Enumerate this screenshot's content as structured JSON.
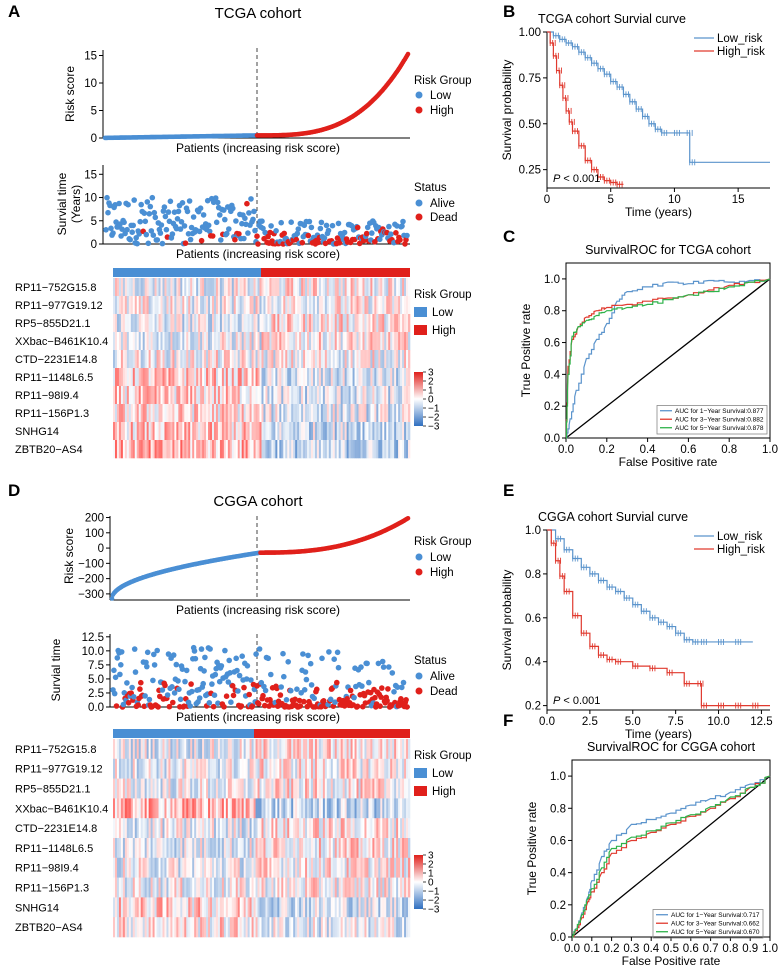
{
  "colors": {
    "low": "#4a8fd4",
    "high": "#e0201b",
    "blue": "#5b94cc",
    "red": "#e03a2f",
    "green": "#2eb34a",
    "axis": "#000000"
  },
  "panel_letters": {
    "A": "A",
    "B": "B",
    "C": "C",
    "D": "D",
    "E": "E",
    "F": "F"
  },
  "tcga": {
    "title": "TCGA cohort",
    "risk_plot": {
      "ylabel": "Risk score",
      "xlabel": "Patients (increasing risk score)",
      "yticks": [
        "0",
        "5",
        "10",
        "15"
      ],
      "ylim": [
        0,
        16
      ],
      "n_low": 150,
      "n_high": 150,
      "legend_title": "Risk Group",
      "legend_low": "Low",
      "legend_high": "High"
    },
    "surv_plot": {
      "ylabel1": "Survial time",
      "ylabel2": "(Years)",
      "xlabel": "Patients (increasing risk score)",
      "yticks": [
        "0",
        "5",
        "10",
        "15"
      ],
      "ylim": [
        0,
        17
      ],
      "legend_title": "Status",
      "legend_alive": "Alive",
      "legend_dead": "Dead"
    },
    "heatmap": {
      "genes": [
        "RP11−752G15.8",
        "RP11−977G19.12",
        "RP5−855D21.1",
        "XXbac−B461K10.4",
        "CTD−2231E14.8",
        "RP11−1148L6.5",
        "RP11−98I9.4",
        "RP11−156P1.3",
        "SNHG14",
        "ZBTB20−AS4"
      ],
      "legend_title": "Risk Group",
      "legend_low": "Low",
      "legend_high": "High",
      "scale_ticks": [
        "3",
        "2",
        "1",
        "0",
        "−1",
        "−2",
        "−3"
      ]
    }
  },
  "cgga": {
    "title": "CGGA cohort",
    "risk_plot": {
      "ylabel": "Risk score",
      "xlabel": "Patients (increasing risk score)",
      "yticks": [
        "200",
        "100",
        "0",
        "−100",
        "−200",
        "−300"
      ],
      "ylim": [
        -340,
        210
      ],
      "n_low": 160,
      "n_high": 160,
      "legend_title": "Risk Group",
      "legend_low": "Low",
      "legend_high": "High"
    },
    "surv_plot": {
      "ylabel": "Survial time",
      "xlabel": "Patients (increasing risk score)",
      "yticks": [
        "12.5",
        "10.0",
        "7.5",
        "5.0",
        "2.5",
        "0.0"
      ],
      "ylim": [
        0,
        13
      ],
      "legend_title": "Status",
      "legend_alive": "Alive",
      "legend_dead": "Dead"
    },
    "heatmap": {
      "genes": [
        "RP11−752G15.8",
        "RP11−977G19.12",
        "RP5−855D21.1",
        "XXbac−B461K10.4",
        "CTD−2231E14.8",
        "RP11−1148L6.5",
        "RP11−98I9.4",
        "RP11−156P1.3",
        "SNHG14",
        "ZBTB20−AS4"
      ],
      "legend_title": "Risk Group",
      "legend_low": "Low",
      "legend_high": "High",
      "scale_ticks": [
        "3",
        "2",
        "1",
        "0",
        "−1",
        "−2",
        "−3"
      ]
    }
  },
  "chart_data": [
    {
      "id": "km_tcga",
      "type": "line",
      "title": "TCGA cohort Survial curve",
      "xlabel": "Time (years)",
      "ylabel": "Survival probability",
      "xlim": [
        0,
        17.5
      ],
      "ylim": [
        0.15,
        1.0
      ],
      "xticks": [
        "0",
        "5",
        "10",
        "15"
      ],
      "yticks": [
        "1.00",
        "0.75",
        "0.50",
        "0.25"
      ],
      "pvalue": "P < 0.001",
      "pvalue_p": "P",
      "pvalue_rest": " < 0.001",
      "series": [
        {
          "name": "Low_risk",
          "x": [
            0,
            0.5,
            1,
            1.5,
            2,
            2.5,
            3,
            3.5,
            4,
            4.5,
            5,
            5.5,
            6,
            6.5,
            7,
            7.5,
            8,
            8.5,
            9,
            10,
            11,
            11.2,
            17.5
          ],
          "y": [
            1.0,
            0.98,
            0.96,
            0.94,
            0.92,
            0.89,
            0.86,
            0.83,
            0.8,
            0.77,
            0.73,
            0.7,
            0.66,
            0.62,
            0.58,
            0.54,
            0.5,
            0.47,
            0.45,
            0.45,
            0.45,
            0.29,
            0.29
          ]
        },
        {
          "name": "High_risk",
          "x": [
            0,
            0.25,
            0.5,
            0.75,
            1,
            1.25,
            1.5,
            1.75,
            2,
            2.5,
            3,
            3.5,
            4,
            4.5,
            5,
            5.5,
            6
          ],
          "y": [
            1.0,
            0.94,
            0.87,
            0.79,
            0.71,
            0.64,
            0.57,
            0.51,
            0.46,
            0.38,
            0.3,
            0.25,
            0.21,
            0.19,
            0.18,
            0.17,
            0.17
          ]
        }
      ]
    },
    {
      "id": "roc_tcga",
      "type": "line",
      "title": "SurvivalROC for TCGA cohort",
      "xlabel": "False Positive rate",
      "ylabel": "True Positive rate",
      "xlim": [
        0,
        1
      ],
      "ylim": [
        0,
        1.1
      ],
      "xticks": [
        "0.0",
        "0.2",
        "0.4",
        "0.6",
        "0.8",
        "1.0"
      ],
      "yticks": [
        "0.0",
        "0.2",
        "0.4",
        "0.6",
        "0.8",
        "1.0"
      ],
      "series": [
        {
          "name": "AUC for 1−Year Survival:0.877",
          "x": [
            0,
            0.02,
            0.05,
            0.1,
            0.15,
            0.2,
            0.25,
            0.3,
            0.4,
            0.5,
            0.6,
            0.7,
            0.8,
            0.9,
            1.0
          ],
          "y": [
            0,
            0.12,
            0.3,
            0.5,
            0.62,
            0.72,
            0.86,
            0.92,
            0.95,
            0.98,
            0.97,
            0.99,
            0.98,
            0.99,
            1.0
          ]
        },
        {
          "name": "AUC for 3−Year Survival:0.882",
          "x": [
            0,
            0.01,
            0.03,
            0.06,
            0.1,
            0.15,
            0.2,
            0.3,
            0.4,
            0.5,
            0.6,
            0.7,
            0.8,
            0.9,
            1.0
          ],
          "y": [
            0,
            0.45,
            0.62,
            0.7,
            0.76,
            0.8,
            0.82,
            0.84,
            0.86,
            0.88,
            0.9,
            0.93,
            0.96,
            0.98,
            1.0
          ]
        },
        {
          "name": "AUC for 5−Year Survival:0.878",
          "x": [
            0,
            0.01,
            0.03,
            0.06,
            0.1,
            0.15,
            0.2,
            0.3,
            0.4,
            0.5,
            0.6,
            0.7,
            0.8,
            0.9,
            1.0
          ],
          "y": [
            0,
            0.4,
            0.64,
            0.7,
            0.74,
            0.77,
            0.8,
            0.82,
            0.84,
            0.87,
            0.9,
            0.92,
            0.95,
            0.98,
            1.0
          ]
        }
      ]
    },
    {
      "id": "km_cgga",
      "type": "line",
      "title": "CGGA cohort Survial curve",
      "xlabel": "Time (years)",
      "ylabel": "Survival probability",
      "xlim": [
        0,
        13
      ],
      "ylim": [
        0.18,
        1.0
      ],
      "xticks": [
        "0.0",
        "2.5",
        "5.0",
        "7.5",
        "10.0",
        "12.5"
      ],
      "yticks": [
        "1.0",
        "0.8",
        "0.6",
        "0.4",
        "0.2"
      ],
      "pvalue": "P < 0.001",
      "pvalue_p": "P",
      "pvalue_rest": " < 0.001",
      "series": [
        {
          "name": "Low_risk",
          "x": [
            0,
            0.5,
            1,
            1.5,
            2,
            2.5,
            3,
            3.5,
            4,
            4.5,
            5,
            5.5,
            6,
            6.5,
            7,
            7.5,
            8,
            8.5,
            9,
            10,
            11,
            12
          ],
          "y": [
            1.0,
            0.96,
            0.91,
            0.87,
            0.83,
            0.8,
            0.77,
            0.74,
            0.72,
            0.69,
            0.66,
            0.63,
            0.6,
            0.58,
            0.56,
            0.53,
            0.5,
            0.49,
            0.49,
            0.49,
            0.49,
            0.49
          ]
        },
        {
          "name": "High_risk",
          "x": [
            0,
            0.25,
            0.5,
            0.75,
            1,
            1.5,
            2,
            2.5,
            3,
            3.5,
            4,
            5,
            6,
            7,
            8,
            8.8,
            9,
            10,
            11,
            12,
            13
          ],
          "y": [
            1.0,
            0.94,
            0.86,
            0.79,
            0.72,
            0.61,
            0.53,
            0.47,
            0.43,
            0.41,
            0.4,
            0.38,
            0.37,
            0.35,
            0.3,
            0.3,
            0.2,
            0.2,
            0.2,
            0.2,
            0.2
          ]
        }
      ]
    },
    {
      "id": "roc_cgga",
      "type": "line",
      "title": "SurvivalROC for CGGA cohort",
      "xlabel": "False Positive rate",
      "ylabel": "True Positive rate",
      "xlim": [
        0,
        1
      ],
      "ylim": [
        0,
        1.1
      ],
      "xticks": [
        "0.0",
        "0.1",
        "0.2",
        "0.3",
        "0.4",
        "0.5",
        "0.6",
        "0.7",
        "0.8",
        "0.9",
        "1.0"
      ],
      "yticks": [
        "0.0",
        "0.2",
        "0.4",
        "0.6",
        "0.8",
        "1.0"
      ],
      "series": [
        {
          "name": "AUC for 1−Year Survival:0.717",
          "x": [
            0,
            0.02,
            0.05,
            0.08,
            0.1,
            0.15,
            0.2,
            0.3,
            0.4,
            0.5,
            0.6,
            0.7,
            0.8,
            0.9,
            1.0
          ],
          "y": [
            0,
            0.05,
            0.15,
            0.25,
            0.35,
            0.5,
            0.6,
            0.7,
            0.73,
            0.77,
            0.82,
            0.86,
            0.9,
            0.95,
            1.0
          ]
        },
        {
          "name": "AUC for 3−Year Survival:0.662",
          "x": [
            0,
            0.02,
            0.05,
            0.08,
            0.1,
            0.15,
            0.2,
            0.3,
            0.4,
            0.5,
            0.6,
            0.7,
            0.8,
            0.9,
            1.0
          ],
          "y": [
            0,
            0.04,
            0.12,
            0.22,
            0.28,
            0.4,
            0.52,
            0.6,
            0.65,
            0.7,
            0.75,
            0.8,
            0.86,
            0.93,
            1.0
          ]
        },
        {
          "name": "AUC for 5−Year Survival:0.670",
          "x": [
            0,
            0.02,
            0.05,
            0.08,
            0.1,
            0.15,
            0.2,
            0.3,
            0.4,
            0.5,
            0.6,
            0.7,
            0.8,
            0.9,
            1.0
          ],
          "y": [
            0,
            0.05,
            0.14,
            0.24,
            0.3,
            0.43,
            0.55,
            0.62,
            0.66,
            0.71,
            0.76,
            0.81,
            0.87,
            0.93,
            1.0
          ]
        }
      ]
    }
  ]
}
